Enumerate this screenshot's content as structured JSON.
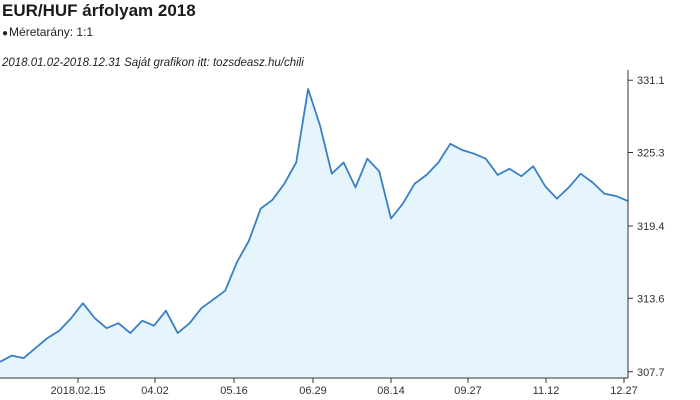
{
  "header": {
    "title": "EUR/HUF árfolyam 2018",
    "scale_label": "Méretarány: 1:1",
    "range_text": "2018.01.02-2018.12.31 Saját grafikon itt: tozsdeasz.hu/chili"
  },
  "colors": {
    "line": "#3a7fc4",
    "fill": "#e6f4fb",
    "axis": "#333333",
    "grid": "#e0e0e0"
  },
  "chart_data": {
    "type": "area",
    "title": "EUR/HUF árfolyam 2018",
    "xlabel": "",
    "ylabel": "",
    "ylim": [
      307.2,
      331.6
    ],
    "y_axis_side": "right",
    "x_ticks": [
      "2018.02.15",
      "04.02",
      "05.16",
      "06.29",
      "08.14",
      "09.27",
      "11.12",
      "12.27"
    ],
    "y_ticks": [
      307.7,
      313.6,
      319.4,
      325.3,
      331.1
    ],
    "grid": false,
    "x": [
      "01.02",
      "01.09",
      "01.16",
      "01.23",
      "01.30",
      "02.06",
      "02.13",
      "02.20",
      "02.27",
      "03.06",
      "03.13",
      "03.20",
      "03.27",
      "04.03",
      "04.10",
      "04.17",
      "04.24",
      "05.01",
      "05.08",
      "05.15",
      "05.22",
      "05.29",
      "06.05",
      "06.12",
      "06.19",
      "06.26",
      "06.29",
      "07.03",
      "07.10",
      "07.17",
      "07.24",
      "07.31",
      "08.07",
      "08.14",
      "08.21",
      "08.28",
      "09.04",
      "09.11",
      "09.18",
      "09.25",
      "10.02",
      "10.09",
      "10.16",
      "10.23",
      "10.30",
      "11.06",
      "11.13",
      "11.20",
      "11.27",
      "12.04",
      "12.11",
      "12.18",
      "12.27",
      "12.31"
    ],
    "series": [
      {
        "values": [
          308.5,
          309.0,
          308.8,
          309.6,
          310.4,
          311.0,
          312.0,
          313.2,
          312.0,
          311.2,
          311.6,
          310.8,
          311.8,
          311.4,
          312.6,
          310.8,
          311.6,
          312.8,
          313.5,
          314.2,
          316.5,
          318.2,
          320.8,
          321.5,
          322.8,
          324.5,
          330.4,
          327.5,
          323.6,
          324.5,
          322.5,
          324.8,
          323.8,
          320.0,
          321.2,
          322.8,
          323.5,
          324.5,
          326.0,
          325.5,
          325.2,
          324.8,
          323.5,
          324.0,
          323.4,
          324.2,
          322.6,
          321.6,
          322.5,
          323.6,
          322.9,
          322.0,
          321.8,
          321.4
        ]
      }
    ]
  }
}
